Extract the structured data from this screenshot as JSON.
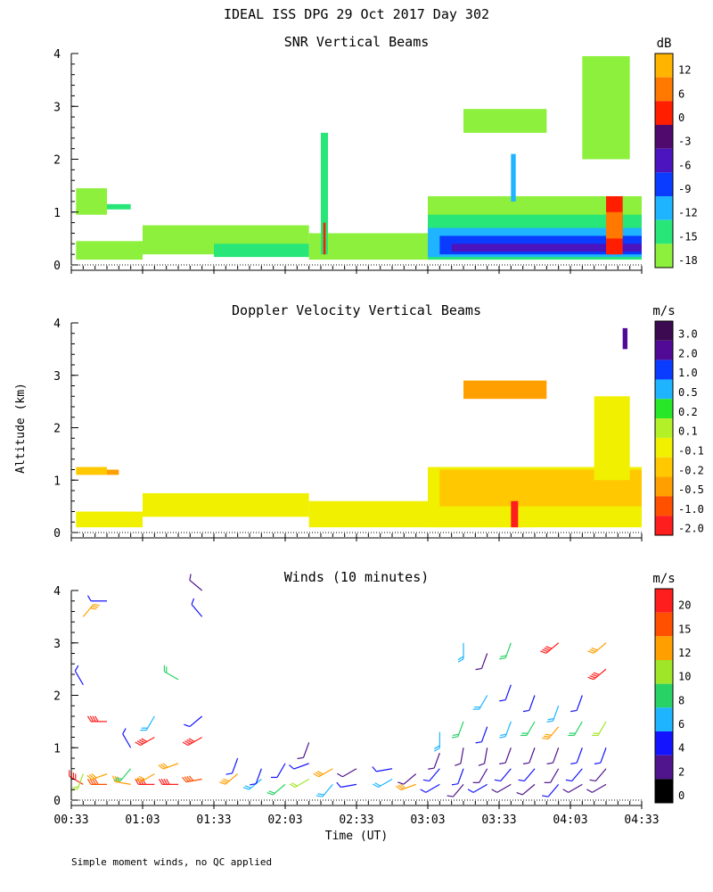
{
  "title": "IDEAL ISS DPG  29 Oct 2017 Day 302",
  "ylabel": "Altitude (km)",
  "xlabel": "Time (UT)",
  "footnote": "Simple moment winds, no QC applied",
  "time_ticks": [
    "00:33",
    "01:03",
    "01:33",
    "02:03",
    "02:33",
    "03:03",
    "03:33",
    "04:03",
    "04:33"
  ],
  "colors": {
    "white": "#ffffff",
    "black": "#000000",
    "axis": "#000000"
  },
  "chart_data": [
    {
      "type": "heatmap",
      "title": "SNR Vertical Beams",
      "unit": "dB",
      "xlim_minutes": [
        0,
        240
      ],
      "ylim_km": [
        0,
        4
      ],
      "y_ticks": [
        "0",
        "1",
        "2",
        "3",
        "4"
      ],
      "colorbar_labels": [
        "12",
        "6",
        "0",
        "-3",
        "-6",
        "-9",
        "-12",
        "-15",
        "-18"
      ],
      "colorbar_colors": [
        "#ffb400",
        "#ff7800",
        "#ff1e00",
        "#500a6e",
        "#4b14be",
        "#0a3cff",
        "#1eb4ff",
        "#28e678",
        "#8cf03c"
      ],
      "blocks": [
        {
          "t0": 2,
          "t1": 15,
          "z0": 0.95,
          "z1": 1.45,
          "c": 8
        },
        {
          "t0": 15,
          "t1": 25,
          "z0": 1.05,
          "z1": 1.15,
          "c": 7
        },
        {
          "t0": 2,
          "t1": 30,
          "z0": 0.1,
          "z1": 0.45,
          "c": 8
        },
        {
          "t0": 30,
          "t1": 100,
          "z0": 0.2,
          "z1": 0.75,
          "c": 8
        },
        {
          "t0": 60,
          "t1": 100,
          "z0": 0.15,
          "z1": 0.4,
          "c": 7
        },
        {
          "t0": 100,
          "t1": 150,
          "z0": 0.1,
          "z1": 0.6,
          "c": 8
        },
        {
          "t0": 150,
          "t1": 195,
          "z0": 0.1,
          "z1": 0.5,
          "c": 8
        },
        {
          "t0": 150,
          "t1": 240,
          "z0": 0.5,
          "z1": 1.3,
          "c": 8
        },
        {
          "t0": 150,
          "t1": 240,
          "z0": 0.1,
          "z1": 0.95,
          "c": 7
        },
        {
          "t0": 150,
          "t1": 240,
          "z0": 0.15,
          "z1": 0.7,
          "c": 6
        },
        {
          "t0": 155,
          "t1": 240,
          "z0": 0.2,
          "z1": 0.55,
          "c": 5
        },
        {
          "t0": 160,
          "t1": 240,
          "z0": 0.25,
          "z1": 0.4,
          "c": 4
        },
        {
          "t0": 165,
          "t1": 200,
          "z0": 2.5,
          "z1": 2.95,
          "c": 8
        },
        {
          "t0": 215,
          "t1": 235,
          "z0": 2.0,
          "z1": 3.95,
          "c": 8
        },
        {
          "t0": 105,
          "t1": 108,
          "z0": 0.2,
          "z1": 2.5,
          "c": 7
        },
        {
          "t0": 106,
          "t1": 107,
          "z0": 0.2,
          "z1": 0.8,
          "c": 2
        },
        {
          "t0": 185,
          "t1": 187,
          "z0": 1.2,
          "z1": 2.1,
          "c": 6
        },
        {
          "t0": 225,
          "t1": 232,
          "z0": 0.2,
          "z1": 1.3,
          "c": 2
        },
        {
          "t0": 225,
          "t1": 232,
          "z0": 0.5,
          "z1": 1.0,
          "c": 1
        }
      ]
    },
    {
      "type": "heatmap",
      "title": "Doppler Velocity Vertical Beams",
      "unit": "m/s",
      "xlim_minutes": [
        0,
        240
      ],
      "ylim_km": [
        0,
        4
      ],
      "y_ticks": [
        "0",
        "1",
        "2",
        "3",
        "4"
      ],
      "colorbar_labels": [
        "3.0",
        "2.0",
        "1.0",
        "0.5",
        "0.2",
        "0.1",
        "-0.1",
        "-0.2",
        "-0.5",
        "-1.0",
        "-2.0"
      ],
      "colorbar_colors": [
        "#3c0a50",
        "#500a96",
        "#0a3cff",
        "#1eb4ff",
        "#28e628",
        "#b4f028",
        "#f0f000",
        "#ffc800",
        "#ffa000",
        "#ff5000",
        "#ff1e1e"
      ],
      "blocks": [
        {
          "t0": 2,
          "t1": 30,
          "z0": 0.1,
          "z1": 0.4,
          "c": 6
        },
        {
          "t0": 30,
          "t1": 100,
          "z0": 0.3,
          "z1": 0.75,
          "c": 6
        },
        {
          "t0": 100,
          "t1": 150,
          "z0": 0.1,
          "z1": 0.6,
          "c": 6
        },
        {
          "t0": 150,
          "t1": 195,
          "z0": 0.1,
          "z1": 0.5,
          "c": 6
        },
        {
          "t0": 150,
          "t1": 240,
          "z0": 0.1,
          "z1": 1.25,
          "c": 6
        },
        {
          "t0": 155,
          "t1": 240,
          "z0": 0.5,
          "z1": 1.2,
          "c": 7
        },
        {
          "t0": 165,
          "t1": 200,
          "z0": 2.55,
          "z1": 2.9,
          "c": 8
        },
        {
          "t0": 220,
          "t1": 235,
          "z0": 1.0,
          "z1": 2.6,
          "c": 6
        },
        {
          "t0": 2,
          "t1": 15,
          "z0": 1.1,
          "z1": 1.25,
          "c": 7
        },
        {
          "t0": 15,
          "t1": 20,
          "z0": 1.1,
          "z1": 1.2,
          "c": 8
        },
        {
          "t0": 232,
          "t1": 234,
          "z0": 3.5,
          "z1": 3.9,
          "c": 1
        },
        {
          "t0": 185,
          "t1": 188,
          "z0": 0.1,
          "z1": 0.6,
          "c": 10
        }
      ]
    },
    {
      "type": "wind_barbs",
      "title": "Winds (10 minutes)",
      "unit": "m/s",
      "xlim_minutes": [
        0,
        240
      ],
      "ylim_km": [
        0,
        4
      ],
      "y_ticks": [
        "0",
        "1",
        "2",
        "3",
        "4"
      ],
      "colorbar_labels": [
        "20",
        "15",
        "12",
        "10",
        "8",
        "6",
        "4",
        "2",
        "0"
      ],
      "colorbar_colors": [
        "#ff1e1e",
        "#ff5000",
        "#ffa000",
        "#a0e628",
        "#28d264",
        "#1eb4ff",
        "#1414ff",
        "#50148c",
        "#000000"
      ],
      "profiles": [
        {
          "t": 5,
          "barbs": [
            [
              0.3,
              20,
              300
            ],
            [
              0.5,
              12,
              200
            ],
            [
              3.5,
              15,
              40
            ],
            [
              2.2,
              6,
              330
            ]
          ]
        },
        {
          "t": 15,
          "barbs": [
            [
              0.3,
              18,
              270
            ],
            [
              0.5,
              15,
              250
            ],
            [
              1.5,
              20,
              270
            ],
            [
              3.8,
              4,
              270
            ]
          ]
        },
        {
          "t": 25,
          "barbs": [
            [
              0.3,
              16,
              280
            ],
            [
              0.6,
              10,
              220
            ],
            [
              1.0,
              6,
              330
            ]
          ]
        },
        {
          "t": 35,
          "barbs": [
            [
              0.3,
              20,
              270
            ],
            [
              0.5,
              14,
              240
            ],
            [
              1.2,
              20,
              240
            ],
            [
              1.6,
              8,
              210
            ]
          ]
        },
        {
          "t": 45,
          "barbs": [
            [
              0.3,
              19,
              270
            ],
            [
              0.7,
              16,
              250
            ],
            [
              2.3,
              10,
              300
            ]
          ]
        },
        {
          "t": 55,
          "barbs": [
            [
              0.4,
              18,
              260
            ],
            [
              1.2,
              20,
              240
            ],
            [
              1.6,
              6,
              230
            ],
            [
              3.5,
              4,
              320
            ],
            [
              4.0,
              2,
              310
            ]
          ]
        },
        {
          "t": 70,
          "barbs": [
            [
              0.5,
              16,
              230
            ],
            [
              0.8,
              4,
              200
            ]
          ]
        },
        {
          "t": 80,
          "barbs": [
            [
              0.4,
              8,
              230
            ],
            [
              0.6,
              4,
              200
            ]
          ]
        },
        {
          "t": 90,
          "barbs": [
            [
              0.3,
              10,
              230
            ],
            [
              0.7,
              6,
              210
            ]
          ]
        },
        {
          "t": 100,
          "barbs": [
            [
              0.4,
              12,
              240
            ],
            [
              0.7,
              4,
              250
            ],
            [
              1.1,
              2,
              200
            ]
          ]
        },
        {
          "t": 110,
          "barbs": [
            [
              0.3,
              8,
              220
            ],
            [
              0.6,
              14,
              240
            ]
          ]
        },
        {
          "t": 120,
          "barbs": [
            [
              0.3,
              6,
              260
            ],
            [
              0.6,
              2,
              240
            ]
          ]
        },
        {
          "t": 135,
          "barbs": [
            [
              0.4,
              8,
              240
            ],
            [
              0.6,
              4,
              260
            ]
          ]
        },
        {
          "t": 145,
          "barbs": [
            [
              0.3,
              16,
              250
            ],
            [
              0.5,
              2,
              230
            ]
          ]
        },
        {
          "t": 155,
          "barbs": [
            [
              0.3,
              6,
              240
            ],
            [
              0.6,
              4,
              220
            ],
            [
              0.9,
              2,
              200
            ],
            [
              1.3,
              8,
              180
            ]
          ]
        },
        {
          "t": 165,
          "barbs": [
            [
              0.3,
              2,
              220
            ],
            [
              0.6,
              4,
              200
            ],
            [
              1.0,
              2,
              190
            ],
            [
              1.5,
              10,
              200
            ],
            [
              3.0,
              8,
              180
            ]
          ]
        },
        {
          "t": 175,
          "barbs": [
            [
              0.3,
              4,
              240
            ],
            [
              0.6,
              2,
              210
            ],
            [
              1.0,
              2,
              190
            ],
            [
              1.4,
              6,
              200
            ],
            [
              2.0,
              8,
              210
            ],
            [
              2.8,
              2,
              200
            ]
          ]
        },
        {
          "t": 185,
          "barbs": [
            [
              0.3,
              2,
              240
            ],
            [
              0.6,
              4,
              220
            ],
            [
              1.0,
              2,
              200
            ],
            [
              1.5,
              8,
              200
            ],
            [
              2.2,
              4,
              200
            ],
            [
              3.0,
              10,
              200
            ]
          ]
        },
        {
          "t": 195,
          "barbs": [
            [
              0.3,
              2,
              230
            ],
            [
              0.6,
              4,
              220
            ],
            [
              1.0,
              2,
              200
            ],
            [
              1.5,
              10,
              210
            ],
            [
              2.0,
              6,
              200
            ]
          ]
        },
        {
          "t": 205,
          "barbs": [
            [
              0.3,
              4,
              220
            ],
            [
              0.6,
              2,
              210
            ],
            [
              1.0,
              2,
              200
            ],
            [
              1.4,
              14,
              220
            ],
            [
              1.8,
              8,
              200
            ],
            [
              3.0,
              20,
              230
            ]
          ]
        },
        {
          "t": 215,
          "barbs": [
            [
              0.3,
              2,
              240
            ],
            [
              0.6,
              4,
              220
            ],
            [
              1.0,
              4,
              200
            ],
            [
              1.5,
              10,
              210
            ],
            [
              2.0,
              6,
              200
            ]
          ]
        },
        {
          "t": 225,
          "barbs": [
            [
              0.3,
              2,
              240
            ],
            [
              0.6,
              2,
              220
            ],
            [
              1.0,
              4,
              200
            ],
            [
              1.5,
              12,
              210
            ],
            [
              2.5,
              20,
              230
            ],
            [
              3.0,
              14,
              230
            ]
          ]
        }
      ]
    }
  ]
}
